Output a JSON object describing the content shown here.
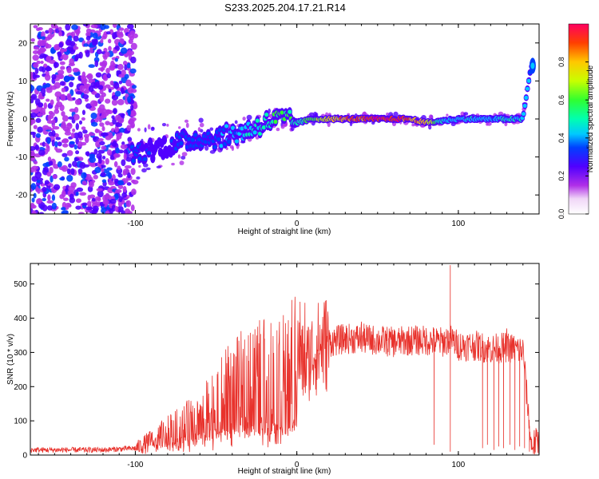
{
  "figure_title": "S233.2025.204.17.21.R14",
  "chart_data": [
    {
      "type": "heatmap",
      "xlabel": "Height of straight line (km)",
      "ylabel": "Frequency (Hz)",
      "xlim": [
        -165,
        150
      ],
      "ylim": [
        -25,
        25
      ],
      "xticks": [
        -100,
        0,
        100
      ],
      "xtick_labels": [
        "-100",
        "0",
        "100"
      ],
      "yticks": [
        -20,
        -10,
        0,
        10,
        20
      ],
      "ytick_labels": [
        "-20",
        "-10",
        "0",
        "10",
        "20"
      ],
      "colorbar": {
        "label": "Normalized spectral amplitude",
        "range": [
          0,
          1
        ],
        "ticks": [
          0,
          0.2,
          0.4,
          0.6,
          0.8
        ],
        "tick_labels": [
          "0.0",
          "0.2",
          "0.4",
          "0.6",
          "0.8"
        ]
      },
      "ridge": {
        "x": [
          -100,
          -90,
          -80,
          -70,
          -60,
          -50,
          -40,
          -30,
          -20,
          -10,
          0,
          10,
          20,
          30,
          40,
          50,
          60,
          70,
          80,
          90,
          100,
          110,
          120,
          130,
          140,
          145
        ],
        "freq": [
          -9,
          -8,
          -7,
          -6,
          -5,
          -5,
          -4,
          -3,
          -1,
          0,
          -1,
          0,
          0,
          0,
          0,
          0,
          0,
          0,
          -1,
          -0.5,
          0,
          0,
          0,
          0,
          0,
          14
        ],
        "amplitude": [
          0.3,
          0.25,
          0.25,
          0.3,
          0.3,
          0.35,
          0.4,
          0.45,
          0.5,
          0.55,
          0.5,
          0.6,
          0.75,
          0.85,
          0.9,
          1.0,
          0.95,
          0.9,
          0.8,
          0.45,
          0.4,
          0.45,
          0.4,
          0.45,
          0.45,
          0.35
        ]
      }
    },
    {
      "type": "line",
      "xlabel": "Height of straight line (km)",
      "ylabel": "SNR (10 * v/v)",
      "xlim": [
        -165,
        150
      ],
      "ylim": [
        0,
        560
      ],
      "xticks": [
        -100,
        0,
        100
      ],
      "xtick_labels": [
        "-100",
        "0",
        "100"
      ],
      "yticks": [
        0,
        100,
        200,
        300,
        400,
        500
      ],
      "ytick_labels": [
        "0",
        "100",
        "200",
        "300",
        "400",
        "500"
      ],
      "series_color": "#e8322c",
      "envelope": {
        "x": [
          -165,
          -120,
          -100,
          -90,
          -80,
          -70,
          -60,
          -50,
          -40,
          -30,
          -20,
          -10,
          -5,
          0,
          5,
          10,
          15,
          20,
          30,
          40,
          50,
          60,
          70,
          80,
          90,
          95,
          100,
          110,
          120,
          130,
          140,
          145,
          150
        ],
        "snr": [
          15,
          15,
          20,
          40,
          60,
          80,
          100,
          140,
          180,
          200,
          220,
          230,
          220,
          300,
          260,
          300,
          320,
          330,
          340,
          340,
          335,
          330,
          335,
          335,
          330,
          340,
          320,
          320,
          310,
          315,
          305,
          30,
          40
        ]
      },
      "peaks": [
        {
          "x": 95,
          "snr": 555
        },
        {
          "x": 2,
          "snr": 448
        },
        {
          "x": 5,
          "snr": 445
        },
        {
          "x": -30,
          "snr": 350
        },
        {
          "x": -20,
          "snr": 340
        },
        {
          "x": 40,
          "snr": 390
        },
        {
          "x": 130,
          "snr": 370
        }
      ],
      "dropouts": [
        {
          "x": 85,
          "snr": 30
        },
        {
          "x": 95,
          "snr": 10
        },
        {
          "x": 115,
          "snr": 20
        },
        {
          "x": 118,
          "snr": 30
        },
        {
          "x": 122,
          "snr": 15
        },
        {
          "x": 125,
          "snr": 25
        },
        {
          "x": 128,
          "snr": 20
        },
        {
          "x": 132,
          "snr": 30
        },
        {
          "x": 135,
          "snr": 15
        },
        {
          "x": 138,
          "snr": 25
        },
        {
          "x": 141,
          "snr": 20
        },
        {
          "x": 144,
          "snr": 10
        }
      ]
    }
  ]
}
